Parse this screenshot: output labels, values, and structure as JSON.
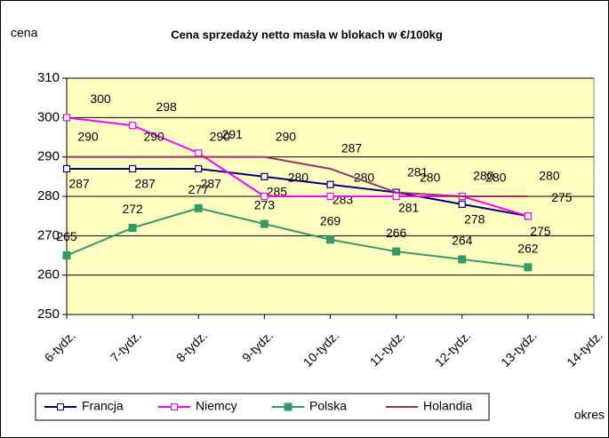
{
  "chart_data": {
    "type": "line",
    "title": "Cena sprzedaży netto masła w blokach w €/100kg",
    "y_label": "cena",
    "x_label": "okres",
    "categories": [
      "6-tydz.",
      "7-tydz.",
      "8-tydz.",
      "9-tydz.",
      "10-tydz.",
      "11-tydz.",
      "12-tydz.",
      "13-tydz.",
      "14-tydz."
    ],
    "series": [
      {
        "name": "Francja",
        "color": "#000080",
        "marker": "square-open",
        "values": [
          287,
          287,
          287,
          285,
          283,
          281,
          278,
          275,
          null
        ]
      },
      {
        "name": "Niemcy",
        "color": "#ff00ff",
        "marker": "square-open",
        "values": [
          300,
          298,
          291,
          280,
          280,
          280,
          280,
          275,
          null
        ]
      },
      {
        "name": "Polska",
        "color": "#339966",
        "marker": "square",
        "values": [
          265,
          272,
          277,
          273,
          269,
          266,
          264,
          262,
          null
        ]
      },
      {
        "name": "Holandia",
        "color": "#993366",
        "marker": "none",
        "values": [
          290,
          290,
          290,
          290,
          287,
          281,
          280,
          280,
          null
        ]
      }
    ],
    "ylim": [
      250,
      310
    ],
    "yticks": [
      250,
      260,
      270,
      280,
      290,
      300,
      310
    ],
    "grid": true,
    "plot_background": "#ffffc0"
  }
}
